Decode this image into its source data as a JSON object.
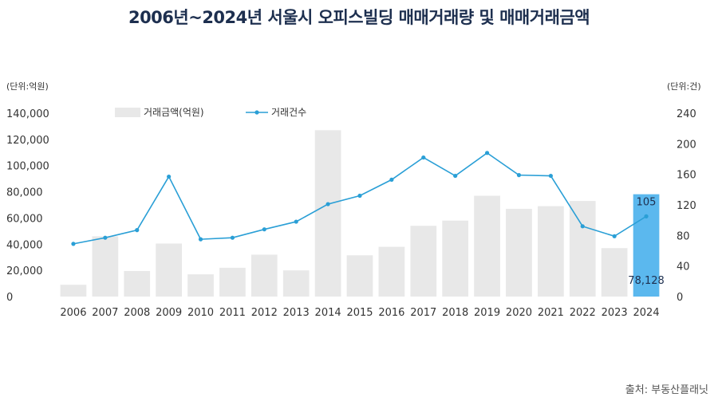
{
  "chart_data": {
    "type": "bar",
    "title": "2006년~2024년 서울시 오피스빌딩 매매거래량 및 매매거래금액",
    "left_unit": "(단위:억원)",
    "right_unit": "(단위:건)",
    "source": "출처: 부동산플래닛",
    "categories": [
      "2006",
      "2007",
      "2008",
      "2009",
      "2010",
      "2011",
      "2012",
      "2013",
      "2014",
      "2015",
      "2016",
      "2017",
      "2018",
      "2019",
      "2020",
      "2021",
      "2022",
      "2023",
      "2024"
    ],
    "y_left": {
      "min": 0,
      "max": 140000,
      "ticks": [
        "0",
        "20,000",
        "40,000",
        "60,000",
        "80,000",
        "100,000",
        "120,000",
        "140,000"
      ]
    },
    "y_right": {
      "min": 0,
      "max": 240,
      "ticks": [
        "0",
        "40",
        "80",
        "120",
        "160",
        "200",
        "240"
      ]
    },
    "series": [
      {
        "name": "거래금액(억원)",
        "type": "bar",
        "axis": "left",
        "color": "#e8e8e8",
        "highlight_color": "#5bb8ee",
        "highlight_index": 18,
        "values": [
          9000,
          46000,
          19500,
          40500,
          17000,
          22000,
          32000,
          20000,
          127000,
          31500,
          38000,
          54000,
          58000,
          77000,
          67000,
          69000,
          73000,
          37000,
          78128
        ]
      },
      {
        "name": "거래건수",
        "type": "line",
        "axis": "right",
        "color": "#2a9fd6",
        "values": [
          69,
          77,
          87,
          157,
          75,
          77,
          88,
          98,
          121,
          132,
          153,
          182,
          158,
          188,
          159,
          158,
          92,
          79,
          105
        ]
      }
    ],
    "data_labels": [
      {
        "series": "거래건수",
        "index": 18,
        "text": "105"
      },
      {
        "series": "거래금액(억원)",
        "index": 18,
        "text": "78,128"
      }
    ]
  }
}
